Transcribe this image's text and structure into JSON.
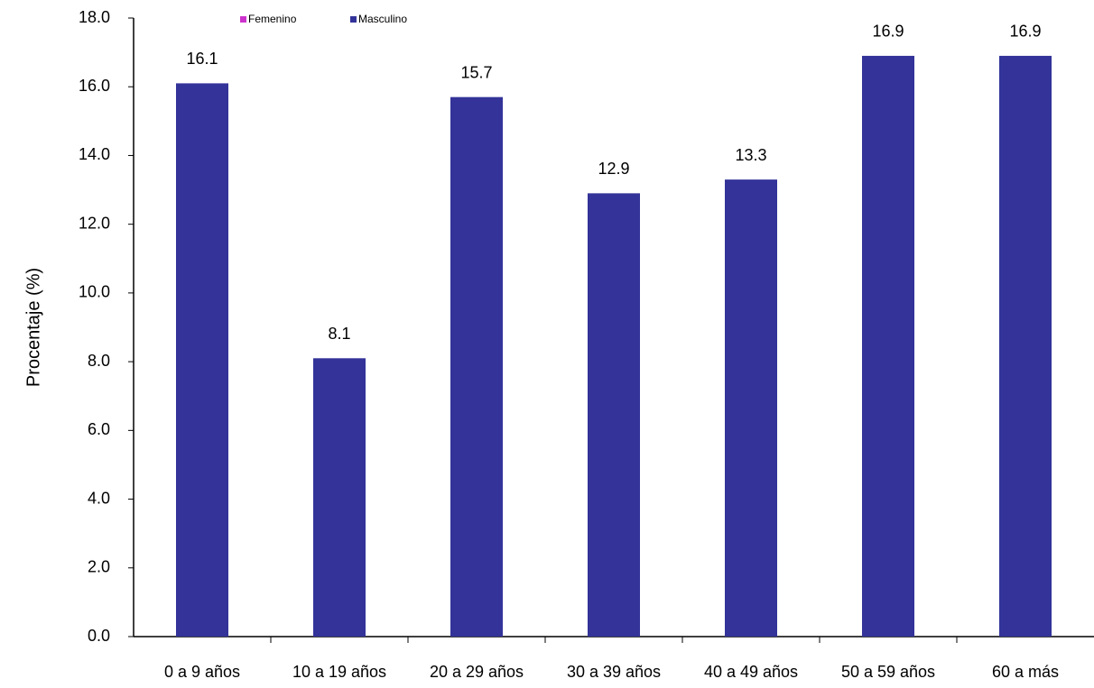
{
  "chart_data": {
    "type": "bar",
    "y_label": "Procentaje (%)",
    "categories": [
      "0 a 9 años",
      "10 a 19 años",
      "20 a 29 años",
      "30 a 39 años",
      "40 a 49 años",
      "50 a 59 años",
      "60 a más"
    ],
    "series": [
      {
        "name": "Femenino",
        "color": "#cc33cc",
        "values": [
          null,
          null,
          null,
          null,
          null,
          null,
          null
        ]
      },
      {
        "name": "Masculino",
        "color": "#333399",
        "values": [
          16.1,
          8.1,
          15.7,
          12.9,
          13.3,
          16.9,
          16.9
        ]
      }
    ],
    "ylim": [
      0,
      18
    ],
    "yticks": [
      {
        "value": 0,
        "label": "0.0"
      },
      {
        "value": 2,
        "label": "2.0"
      },
      {
        "value": 4,
        "label": "4.0"
      },
      {
        "value": 6,
        "label": "6.0"
      },
      {
        "value": 8,
        "label": "8.0"
      },
      {
        "value": 10,
        "label": "10.0"
      },
      {
        "value": 12,
        "label": "12.0"
      },
      {
        "value": 14,
        "label": "14.0"
      },
      {
        "value": 16,
        "label": "16.0"
      },
      {
        "value": 18,
        "label": "18.0"
      }
    ],
    "grid": false,
    "legend": "top"
  }
}
